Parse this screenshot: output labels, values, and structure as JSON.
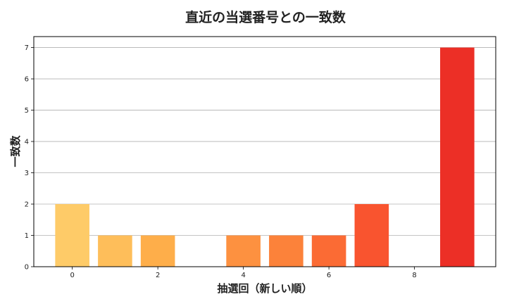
{
  "chart_data": {
    "type": "bar",
    "title": "直近の当選番号との一致数",
    "xlabel": "抽選回（新しい順）",
    "ylabel": "一致数",
    "x": [
      0,
      1,
      2,
      3,
      4,
      5,
      6,
      7,
      8,
      9
    ],
    "values": [
      2,
      1,
      1,
      0,
      1,
      1,
      1,
      2,
      0,
      7
    ],
    "colors": [
      "#fecb68",
      "#febe5a",
      "#feae4a",
      "#fd9c43",
      "#fd9140",
      "#fc823a",
      "#fb6b34",
      "#f9542f",
      "#f5422b",
      "#ec2f26"
    ],
    "xticks": [
      0,
      2,
      4,
      6,
      8
    ],
    "yticks": [
      0,
      1,
      2,
      3,
      4,
      5,
      6,
      7
    ],
    "xlim": [
      -0.9,
      9.9
    ],
    "ylim": [
      0,
      7.35
    ],
    "grid": "horizontal"
  }
}
